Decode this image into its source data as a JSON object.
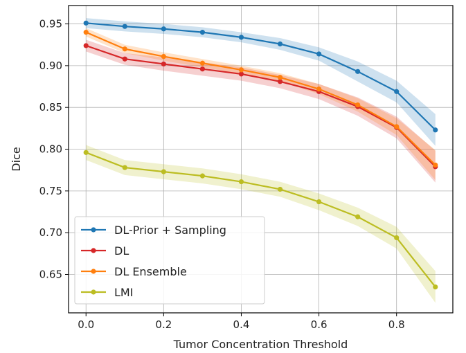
{
  "chart_data": {
    "type": "line",
    "title": "",
    "xlabel": "Tumor Concentration Threshold",
    "ylabel": "Dice",
    "xlim": [
      -0.045,
      0.945
    ],
    "ylim": [
      0.604,
      0.972
    ],
    "xticks": [
      0.0,
      0.2,
      0.4,
      0.6,
      0.8
    ],
    "xtick_labels": [
      "0.0",
      "0.2",
      "0.4",
      "0.6",
      "0.8"
    ],
    "yticks": [
      0.65,
      0.7,
      0.75,
      0.8,
      0.85,
      0.9,
      0.95
    ],
    "ytick_labels": [
      "0.65",
      "0.70",
      "0.75",
      "0.80",
      "0.85",
      "0.90",
      "0.95"
    ],
    "grid": true,
    "legend_position": "bottom-left",
    "x": [
      0.0,
      0.1,
      0.2,
      0.3,
      0.4,
      0.5,
      0.6,
      0.7,
      0.8,
      0.9
    ],
    "series": [
      {
        "name": "DL-Prior + Sampling",
        "color": "#1f77b4",
        "values": [
          0.951,
          0.947,
          0.944,
          0.94,
          0.934,
          0.926,
          0.914,
          0.893,
          0.869,
          0.823
        ],
        "band": [
          0.006,
          0.006,
          0.006,
          0.006,
          0.006,
          0.007,
          0.008,
          0.012,
          0.013,
          0.019
        ]
      },
      {
        "name": "DL",
        "color": "#d62728",
        "values": [
          0.924,
          0.908,
          0.902,
          0.896,
          0.89,
          0.881,
          0.869,
          0.851,
          0.826,
          0.779
        ],
        "band": [
          0.007,
          0.007,
          0.008,
          0.008,
          0.008,
          0.008,
          0.009,
          0.011,
          0.013,
          0.019
        ]
      },
      {
        "name": "DL Ensemble",
        "color": "#ff7f0e",
        "values": [
          0.94,
          0.92,
          0.911,
          0.903,
          0.895,
          0.886,
          0.872,
          0.853,
          0.827,
          0.781
        ],
        "band": [
          0.005,
          0.005,
          0.005,
          0.005,
          0.005,
          0.005,
          0.006,
          0.008,
          0.01,
          0.018
        ]
      },
      {
        "name": "LMI",
        "color": "#bcbd22",
        "values": [
          0.796,
          0.778,
          0.773,
          0.768,
          0.761,
          0.752,
          0.737,
          0.719,
          0.694,
          0.635
        ],
        "band": [
          0.009,
          0.009,
          0.009,
          0.009,
          0.009,
          0.009,
          0.01,
          0.011,
          0.013,
          0.019
        ]
      }
    ]
  }
}
